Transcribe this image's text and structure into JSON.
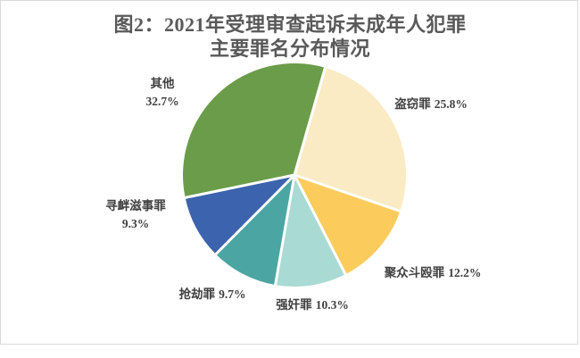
{
  "figure": {
    "title_line1": "图2：2021年受理审查起诉未成年人犯罪",
    "title_line2": "主要罪名分布情况"
  },
  "chart_data": {
    "type": "pie",
    "title": "图2：2021年受理审查起诉未成年人犯罪主要罪名分布情况",
    "legend": "none",
    "label_style": "outside, category name + percent",
    "rotation": "clockwise",
    "start_angle_deg": 16,
    "separator_color": "#ffffff",
    "slices": [
      {
        "label": "盗窃罪",
        "value": 25.8,
        "pct_text": "25.8%",
        "color": "#faebc5"
      },
      {
        "label": "聚众斗殴罪",
        "value": 12.2,
        "pct_text": "12.2%",
        "color": "#fbcb5c"
      },
      {
        "label": "强奸罪",
        "value": 10.3,
        "pct_text": "10.3%",
        "color": "#a9dad3"
      },
      {
        "label": "抢劫罪",
        "value": 9.7,
        "pct_text": "9.7%",
        "color": "#4ba5a2"
      },
      {
        "label": "寻衅滋事罪",
        "value": 9.3,
        "pct_text": "9.3%",
        "color": "#3c63ad"
      },
      {
        "label": "其他",
        "value": 32.7,
        "pct_text": "32.7%",
        "color": "#6b9c49"
      }
    ]
  }
}
